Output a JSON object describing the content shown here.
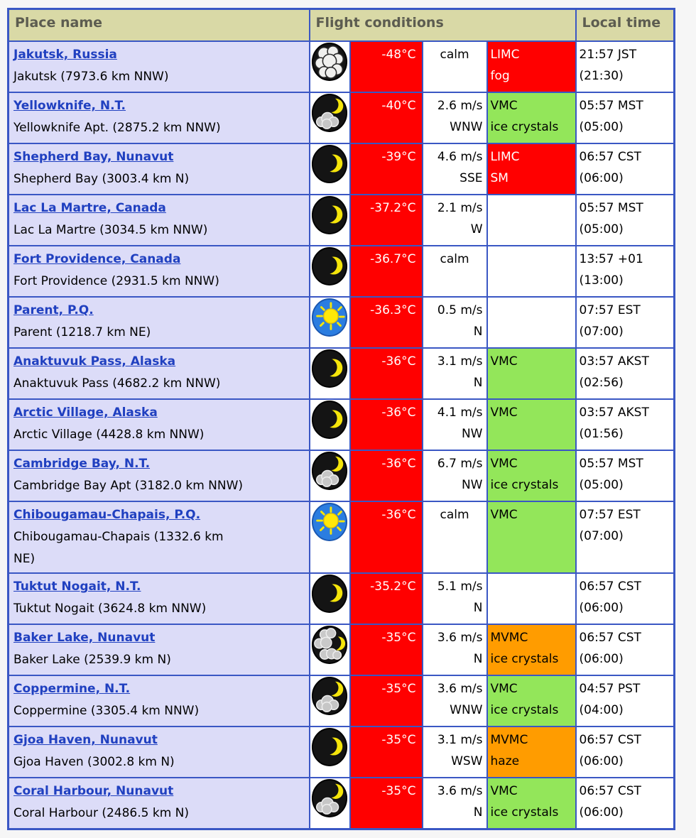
{
  "header": {
    "place": "Place name",
    "flight": "Flight conditions",
    "local": "Local time"
  },
  "colors": {
    "border_blue": "#3a57c4",
    "header_bg": "#d9d9a6",
    "place_row_bg": "#dcdcf8",
    "link_blue": "#2040c0",
    "alert_red": "#ff0000",
    "ok_green": "#93e65a",
    "marginal_orange": "#ff9c00"
  },
  "rows": [
    {
      "name": "Jakutsk, Russia",
      "sub": "Jakutsk (7973.6 km NNW)",
      "icon": "overcast-night",
      "temp": "-48°C",
      "wind1": "calm",
      "wind2": "",
      "calm": true,
      "cond1": "LIMC",
      "cond2": "fog",
      "status": "red",
      "time1": "21:57 JST",
      "time2": "(21:30)"
    },
    {
      "name": "Yellowknife, N.T.",
      "sub": "Yellowknife Apt. (2875.2 km NNW)",
      "icon": "partly-cloudy-night",
      "temp": "-40°C",
      "wind1": "2.6 m/s",
      "wind2": "WNW",
      "calm": false,
      "cond1": "VMC",
      "cond2": "ice crystals",
      "status": "green",
      "time1": "05:57 MST",
      "time2": "(05:00)"
    },
    {
      "name": "Shepherd Bay, Nunavut",
      "sub": "Shepherd Bay (3003.4 km N)",
      "icon": "clear-night",
      "temp": "-39°C",
      "wind1": "4.6 m/s",
      "wind2": "SSE",
      "calm": false,
      "cond1": "LIMC",
      "cond2": "SM",
      "status": "red",
      "time1": "06:57 CST",
      "time2": "(06:00)"
    },
    {
      "name": "Lac La Martre, Canada",
      "sub": "Lac La Martre (3034.5 km NNW)",
      "icon": "clear-night",
      "temp": "-37.2°C",
      "wind1": "2.1 m/s",
      "wind2": "W",
      "calm": false,
      "cond1": "",
      "cond2": "",
      "status": "none",
      "time1": "05:57 MST",
      "time2": "(05:00)"
    },
    {
      "name": "Fort Providence, Canada",
      "sub": "Fort Providence (2931.5 km NNW)",
      "icon": "clear-night",
      "temp": "-36.7°C",
      "wind1": "calm",
      "wind2": "",
      "calm": true,
      "cond1": "",
      "cond2": "",
      "status": "none",
      "time1": "13:57 +01",
      "time2": "(13:00)"
    },
    {
      "name": "Parent, P.Q.",
      "sub": "Parent (1218.7 km NE)",
      "icon": "sunny-day",
      "temp": "-36.3°C",
      "wind1": "0.5 m/s",
      "wind2": "N",
      "calm": false,
      "cond1": "",
      "cond2": "",
      "status": "none",
      "time1": "07:57 EST",
      "time2": "(07:00)"
    },
    {
      "name": "Anaktuvuk Pass, Alaska",
      "sub": "Anaktuvuk Pass (4682.2 km NNW)",
      "icon": "clear-night",
      "temp": "-36°C",
      "wind1": "3.1 m/s",
      "wind2": "N",
      "calm": false,
      "cond1": "VMC",
      "cond2": "",
      "status": "green",
      "time1": "03:57 AKST",
      "time2": "(02:56)"
    },
    {
      "name": "Arctic Village, Alaska",
      "sub": "Arctic Village (4428.8 km NNW)",
      "icon": "clear-night",
      "temp": "-36°C",
      "wind1": "4.1 m/s",
      "wind2": "NW",
      "calm": false,
      "cond1": "VMC",
      "cond2": "",
      "status": "green",
      "time1": "03:57 AKST",
      "time2": "(01:56)"
    },
    {
      "name": "Cambridge Bay, N.T.",
      "sub": "Cambridge Bay Apt (3182.0 km NNW)",
      "icon": "partly-cloudy-night",
      "temp": "-36°C",
      "wind1": "6.7 m/s",
      "wind2": "NW",
      "calm": false,
      "cond1": "VMC",
      "cond2": "ice crystals",
      "status": "green",
      "time1": "05:57 MST",
      "time2": "(05:00)"
    },
    {
      "name": "Chibougamau-Chapais, P.Q.",
      "sub": "Chibougamau-Chapais (1332.6 km NE)",
      "icon": "sunny-day",
      "temp": "-36°C",
      "wind1": "calm",
      "wind2": "",
      "calm": true,
      "cond1": "VMC",
      "cond2": "",
      "status": "green",
      "time1": "07:57 EST",
      "time2": "(07:00)"
    },
    {
      "name": "Tuktut Nogait, N.T.",
      "sub": "Tuktut Nogait (3624.8 km NNW)",
      "icon": "clear-night",
      "temp": "-35.2°C",
      "wind1": "5.1 m/s",
      "wind2": "N",
      "calm": false,
      "cond1": "",
      "cond2": "",
      "status": "none",
      "time1": "06:57 CST",
      "time2": "(06:00)"
    },
    {
      "name": "Baker Lake, Nunavut",
      "sub": "Baker Lake (2539.9 km N)",
      "icon": "mostly-cloudy-night",
      "temp": "-35°C",
      "wind1": "3.6 m/s",
      "wind2": "N",
      "calm": false,
      "cond1": "MVMC",
      "cond2": "ice crystals",
      "status": "orange",
      "time1": "06:57 CST",
      "time2": "(06:00)"
    },
    {
      "name": "Coppermine, N.T.",
      "sub": "Coppermine (3305.4 km NNW)",
      "icon": "partly-cloudy-night",
      "temp": "-35°C",
      "wind1": "3.6 m/s",
      "wind2": "WNW",
      "calm": false,
      "cond1": "VMC",
      "cond2": "ice crystals",
      "status": "green",
      "time1": "04:57 PST",
      "time2": "(04:00)"
    },
    {
      "name": "Gjoa Haven, Nunavut",
      "sub": "Gjoa Haven (3002.8 km N)",
      "icon": "clear-night",
      "temp": "-35°C",
      "wind1": "3.1 m/s",
      "wind2": "WSW",
      "calm": false,
      "cond1": "MVMC",
      "cond2": "haze",
      "status": "orange",
      "time1": "06:57 CST",
      "time2": "(06:00)"
    },
    {
      "name": "Coral Harbour, Nunavut",
      "sub": "Coral Harbour (2486.5 km N)",
      "icon": "partly-cloudy-night",
      "temp": "-35°C",
      "wind1": "3.6 m/s",
      "wind2": "N",
      "calm": false,
      "cond1": "VMC",
      "cond2": "ice crystals",
      "status": "green",
      "time1": "06:57 CST",
      "time2": "(06:00)"
    }
  ]
}
